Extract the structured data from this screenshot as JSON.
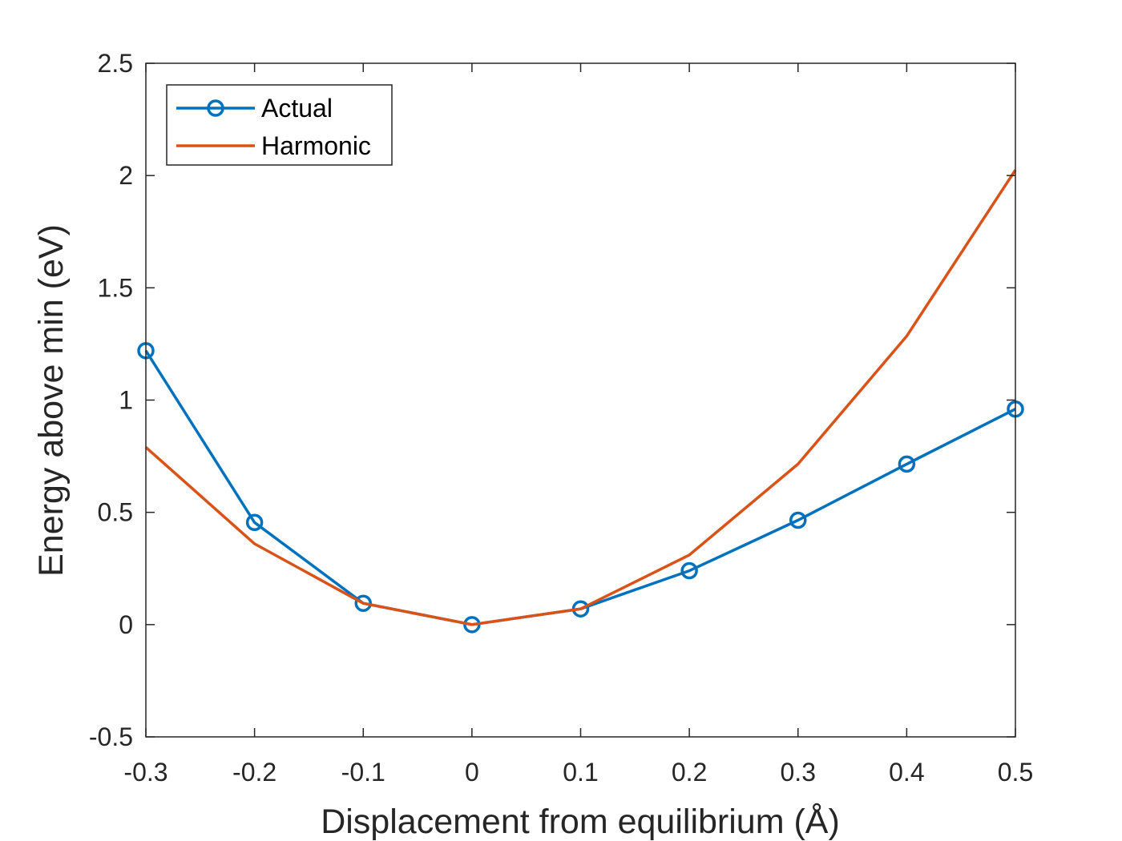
{
  "chart_data": {
    "type": "line",
    "title": "",
    "xlabel": "Displacement from equilibrium (Å)",
    "ylabel": "Energy above min (eV)",
    "xlim": [
      -0.3,
      0.5
    ],
    "ylim": [
      -0.5,
      2.5
    ],
    "xticks": [
      -0.3,
      -0.2,
      -0.1,
      0,
      0.1,
      0.2,
      0.3,
      0.4,
      0.5
    ],
    "xtick_labels": [
      "-0.3",
      "-0.2",
      "-0.1",
      "0",
      "0.1",
      "0.2",
      "0.3",
      "0.4",
      "0.5"
    ],
    "yticks": [
      -0.5,
      0,
      0.5,
      1,
      1.5,
      2,
      2.5
    ],
    "ytick_labels": [
      "-0.5",
      "0",
      "0.5",
      "1",
      "1.5",
      "2",
      "2.5"
    ],
    "grid": false,
    "legend_position": "top-left",
    "x": [
      -0.3,
      -0.2,
      -0.1,
      0,
      0.1,
      0.2,
      0.3,
      0.4,
      0.5
    ],
    "series": [
      {
        "name": "Actual",
        "color": "#0072BD",
        "marker": "circle",
        "values": [
          1.22,
          0.455,
          0.095,
          0.0,
          0.07,
          0.24,
          0.465,
          0.715,
          0.96
        ]
      },
      {
        "name": "Harmonic",
        "color": "#D95319",
        "marker": "none",
        "values": [
          0.79,
          0.36,
          0.095,
          0.0,
          0.07,
          0.31,
          0.715,
          1.285,
          2.025
        ]
      }
    ]
  }
}
